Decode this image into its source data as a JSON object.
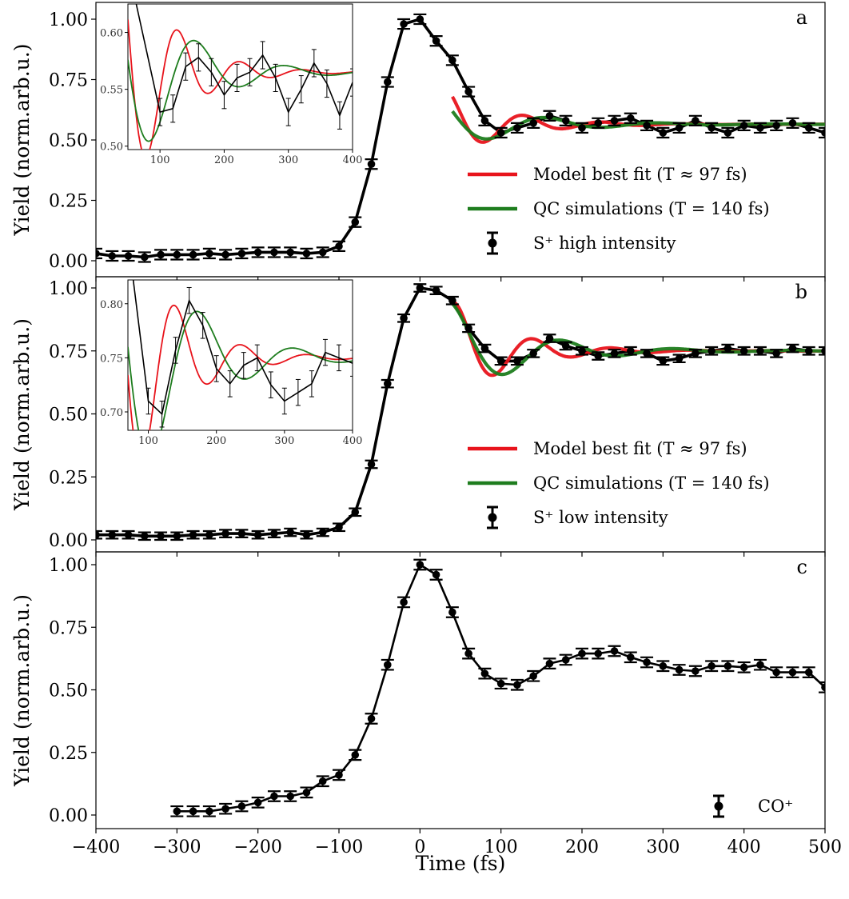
{
  "chart_data": [
    {
      "type": "line",
      "panel_label": "a",
      "ylabel": "Yield (norm.arb.u.)",
      "xlim": [
        -400,
        500
      ],
      "ylim": [
        -0.03,
        1.06
      ],
      "yticks": [
        "0.00",
        "0.25",
        "0.50",
        "0.75",
        "1.00"
      ],
      "legend": [
        {
          "label": "Model best fit (T ≈ 97 fs)",
          "color": "#e8141c",
          "kind": "line"
        },
        {
          "label": "QC simulations (T = 140 fs)",
          "color": "#1e7d1e",
          "kind": "line"
        },
        {
          "label": "S⁺ high intensity",
          "color": "#000000",
          "kind": "errorbar"
        }
      ],
      "series": [
        {
          "name": "S⁺ high intensity",
          "x": [
            -400,
            -380,
            -360,
            -340,
            -320,
            -300,
            -280,
            -260,
            -240,
            -220,
            -200,
            -180,
            -160,
            -140,
            -120,
            -100,
            -80,
            -60,
            -40,
            -20,
            0,
            20,
            40,
            60,
            80,
            100,
            120,
            140,
            160,
            180,
            200,
            220,
            240,
            260,
            280,
            300,
            320,
            340,
            360,
            380,
            400,
            420,
            440,
            460,
            480,
            500
          ],
          "y": [
            0.03,
            0.02,
            0.02,
            0.015,
            0.025,
            0.025,
            0.025,
            0.03,
            0.025,
            0.03,
            0.035,
            0.035,
            0.035,
            0.03,
            0.035,
            0.06,
            0.16,
            0.4,
            0.74,
            0.98,
            1.0,
            0.91,
            0.83,
            0.7,
            0.58,
            0.53,
            0.55,
            0.57,
            0.6,
            0.58,
            0.55,
            0.57,
            0.58,
            0.59,
            0.56,
            0.53,
            0.55,
            0.58,
            0.55,
            0.53,
            0.56,
            0.55,
            0.56,
            0.57,
            0.55,
            0.53
          ],
          "err": 0.02
        },
        {
          "name": "Model best fit",
          "x": [
            40,
            500
          ],
          "curve": "fitA"
        },
        {
          "name": "QC simulations",
          "x": [
            40,
            500
          ],
          "curve": "qcA"
        }
      ],
      "inset": {
        "xlim": [
          50,
          400
        ],
        "ylim": [
          0.497,
          0.625
        ],
        "xticks": [
          "100",
          "200",
          "300",
          "400"
        ],
        "yticks": [
          "0.50",
          "0.55",
          "0.60"
        ],
        "data_x": [
          100,
          120,
          140,
          160,
          180,
          200,
          220,
          240,
          260,
          280,
          300,
          320,
          340,
          360,
          380,
          400
        ],
        "data_y": [
          0.53,
          0.533,
          0.57,
          0.578,
          0.565,
          0.545,
          0.56,
          0.565,
          0.58,
          0.56,
          0.53,
          0.55,
          0.573,
          0.555,
          0.527,
          0.556
        ],
        "err": 0.012
      }
    },
    {
      "type": "line",
      "panel_label": "b",
      "ylabel": "Yield (norm.arb.u.)",
      "xlim": [
        -400,
        500
      ],
      "ylim": [
        -0.03,
        1.06
      ],
      "yticks": [
        "0.00",
        "0.25",
        "0.50",
        "0.75",
        "1.00"
      ],
      "legend": [
        {
          "label": "Model best fit (T ≈ 97 fs)",
          "color": "#e8141c",
          "kind": "line"
        },
        {
          "label": "QC simulations (T = 140 fs)",
          "color": "#1e7d1e",
          "kind": "line"
        },
        {
          "label": "S⁺ low intensity",
          "color": "#000000",
          "kind": "errorbar"
        }
      ],
      "series": [
        {
          "name": "S⁺ low intensity",
          "x": [
            -400,
            -380,
            -360,
            -340,
            -320,
            -300,
            -280,
            -260,
            -240,
            -220,
            -200,
            -180,
            -160,
            -140,
            -120,
            -100,
            -80,
            -60,
            -40,
            -20,
            0,
            20,
            40,
            60,
            80,
            100,
            120,
            140,
            160,
            180,
            200,
            220,
            240,
            260,
            280,
            300,
            320,
            340,
            360,
            380,
            400,
            420,
            440,
            460,
            480,
            500
          ],
          "y": [
            0.02,
            0.02,
            0.02,
            0.015,
            0.015,
            0.015,
            0.02,
            0.02,
            0.025,
            0.025,
            0.02,
            0.025,
            0.03,
            0.02,
            0.03,
            0.05,
            0.11,
            0.3,
            0.62,
            0.88,
            1.0,
            0.99,
            0.95,
            0.84,
            0.76,
            0.71,
            0.71,
            0.74,
            0.8,
            0.77,
            0.75,
            0.73,
            0.74,
            0.75,
            0.74,
            0.71,
            0.72,
            0.74,
            0.75,
            0.76,
            0.75,
            0.75,
            0.74,
            0.76,
            0.75,
            0.75
          ],
          "err": 0.015
        },
        {
          "name": "Model best fit",
          "x": [
            40,
            500
          ],
          "curve": "fitB"
        },
        {
          "name": "QC simulations",
          "x": [
            40,
            500
          ],
          "curve": "qcB"
        }
      ],
      "inset": {
        "xlim": [
          70,
          400
        ],
        "ylim": [
          0.683,
          0.822
        ],
        "xticks": [
          "100",
          "200",
          "300",
          "400"
        ],
        "yticks": [
          "0.70",
          "0.75",
          "0.80"
        ],
        "data_x": [
          100,
          120,
          140,
          160,
          180,
          200,
          220,
          240,
          260,
          280,
          300,
          320,
          340,
          360,
          380,
          400
        ],
        "data_y": [
          0.71,
          0.698,
          0.757,
          0.803,
          0.78,
          0.74,
          0.726,
          0.743,
          0.75,
          0.725,
          0.71,
          0.718,
          0.726,
          0.755,
          0.75,
          0.745
        ],
        "err": 0.012
      }
    },
    {
      "type": "line",
      "panel_label": "c",
      "xlabel": "Time (fs)",
      "ylabel": "Yield (norm.arb.u.)",
      "xlim": [
        -400,
        500
      ],
      "ylim": [
        -0.05,
        1.06
      ],
      "xticks": [
        "−400",
        "−300",
        "−200",
        "−100",
        "0",
        "100",
        "200",
        "300",
        "400",
        "500"
      ],
      "yticks": [
        "0.00",
        "0.25",
        "0.50",
        "0.75",
        "1.00"
      ],
      "legend": [
        {
          "label": "CO⁺",
          "color": "#000000",
          "kind": "errorbar"
        }
      ],
      "series": [
        {
          "name": "CO⁺",
          "x": [
            -300,
            -280,
            -260,
            -240,
            -220,
            -200,
            -180,
            -160,
            -140,
            -120,
            -100,
            -80,
            -60,
            -40,
            -20,
            0,
            20,
            40,
            60,
            80,
            100,
            120,
            140,
            160,
            180,
            200,
            220,
            240,
            260,
            280,
            300,
            320,
            340,
            360,
            380,
            400,
            420,
            440,
            460,
            480,
            500
          ],
          "y": [
            0.015,
            0.015,
            0.015,
            0.025,
            0.035,
            0.05,
            0.075,
            0.075,
            0.09,
            0.135,
            0.16,
            0.24,
            0.385,
            0.6,
            0.85,
            1.0,
            0.96,
            0.81,
            0.645,
            0.565,
            0.525,
            0.52,
            0.555,
            0.605,
            0.62,
            0.645,
            0.645,
            0.655,
            0.63,
            0.61,
            0.595,
            0.58,
            0.575,
            0.595,
            0.595,
            0.59,
            0.6,
            0.57,
            0.57,
            0.57,
            0.51
          ],
          "err": 0.02
        }
      ]
    }
  ]
}
